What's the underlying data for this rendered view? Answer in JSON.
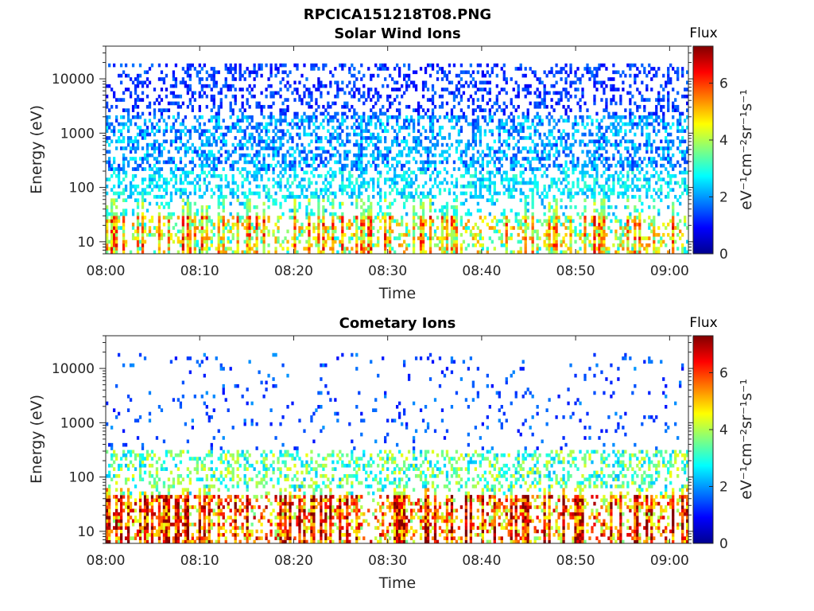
{
  "figure": {
    "file_title": "RPCICA151218T08.PNG"
  },
  "chart_data": [
    {
      "type": "heatmap",
      "title": "Solar Wind Ions",
      "xlabel": "Time",
      "ylabel": "Energy (eV)",
      "x_ticks": [
        "08:00",
        "08:10",
        "08:20",
        "08:30",
        "08:40",
        "08:50",
        "09:00"
      ],
      "x_range": [
        "08:00",
        "09:02"
      ],
      "y_scale": "log",
      "y_ticks": [
        10,
        100,
        1000,
        10000
      ],
      "y_tick_labels": [
        "10",
        "100",
        "1000",
        "10000"
      ],
      "y_range": [
        6,
        40000
      ],
      "colorbar": {
        "label": "Flux",
        "unit_label": "eV⁻¹cm⁻²sr⁻¹s⁻¹",
        "range": [
          0,
          7.3
        ],
        "ticks": [
          0,
          2,
          4,
          6
        ],
        "tick_labels": [
          "0",
          "2",
          "4",
          "6"
        ],
        "colormap": "jet"
      },
      "bands": [
        {
          "e_min": 6,
          "e_max": 30,
          "occupancy": 0.85,
          "flux_range": [
            2.5,
            5.5
          ]
        },
        {
          "e_min": 30,
          "e_max": 200,
          "occupancy": 0.45,
          "flux_range": [
            2.0,
            3.2
          ]
        },
        {
          "e_min": 200,
          "e_max": 2000,
          "occupancy": 0.45,
          "flux_range": [
            1.2,
            2.8
          ]
        },
        {
          "e_min": 2000,
          "e_max": 20000,
          "occupancy": 0.3,
          "flux_range": [
            0.8,
            1.8
          ]
        }
      ]
    },
    {
      "type": "heatmap",
      "title": "Cometary Ions",
      "xlabel": "Time",
      "ylabel": "Energy (eV)",
      "x_ticks": [
        "08:00",
        "08:10",
        "08:20",
        "08:30",
        "08:40",
        "08:50",
        "09:00"
      ],
      "x_range": [
        "08:00",
        "09:02"
      ],
      "y_scale": "log",
      "y_ticks": [
        10,
        100,
        1000,
        10000
      ],
      "y_tick_labels": [
        "10",
        "100",
        "1000",
        "10000"
      ],
      "y_range": [
        6,
        40000
      ],
      "colorbar": {
        "label": "Flux",
        "unit_label": "eV⁻¹cm⁻²sr⁻¹s⁻¹",
        "range": [
          0,
          7.3
        ],
        "ticks": [
          0,
          2,
          4,
          6
        ],
        "tick_labels": [
          "0",
          "2",
          "4",
          "6"
        ],
        "colormap": "jet"
      },
      "bands": [
        {
          "e_min": 6,
          "e_max": 45,
          "occupancy": 0.95,
          "flux_range": [
            3.5,
            7.0
          ]
        },
        {
          "e_min": 45,
          "e_max": 300,
          "occupancy": 0.35,
          "flux_range": [
            2.2,
            4.5
          ]
        },
        {
          "e_min": 300,
          "e_max": 20000,
          "occupancy": 0.06,
          "flux_range": [
            1.0,
            2.0
          ]
        }
      ]
    }
  ]
}
